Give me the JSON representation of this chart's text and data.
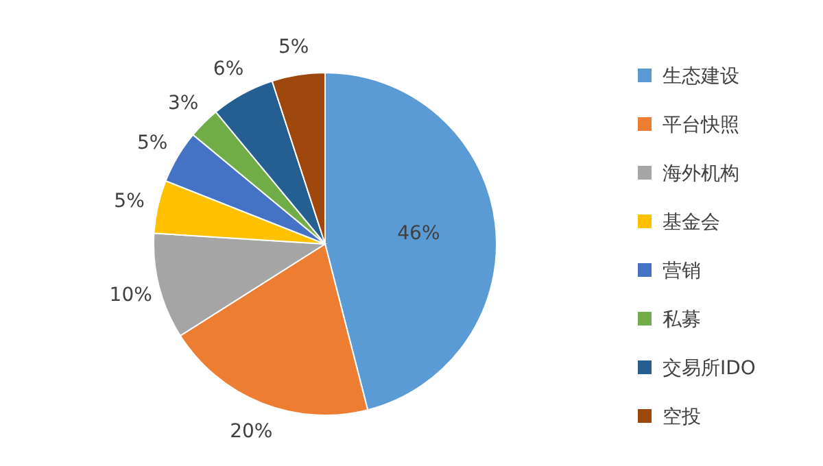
{
  "chart_data": {
    "type": "pie",
    "categories": [
      "生态建设",
      "平台快照",
      "海外机构",
      "基金会",
      "营销",
      "私募",
      "交易所IDO",
      "空投"
    ],
    "values": [
      46,
      20,
      10,
      5,
      5,
      3,
      6,
      5
    ],
    "colors": [
      "#5b9bd5",
      "#ed7d31",
      "#a5a5a5",
      "#ffc000",
      "#4472c4",
      "#70ad47",
      "#255e91",
      "#9e480e"
    ],
    "value_labels": [
      "46%",
      "20%",
      "10%",
      "5%",
      "5%",
      "3%",
      "6%",
      "5%"
    ],
    "legend": "right"
  }
}
